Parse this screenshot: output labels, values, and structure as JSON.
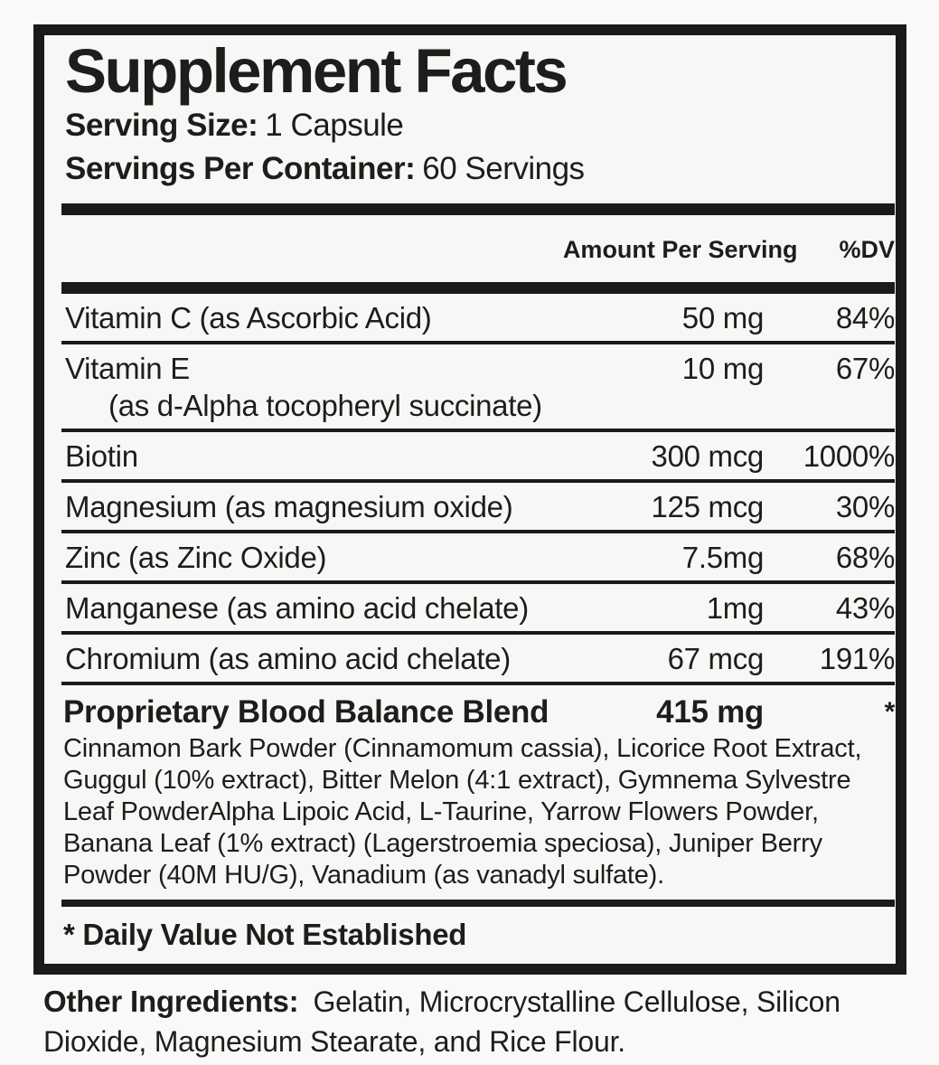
{
  "panel": {
    "title": "Supplement Facts",
    "serving_size_label": "Serving Size:",
    "serving_size_value": "1 Capsule",
    "servings_per_container_label": "Servings Per Container:",
    "servings_per_container_value": "60 Servings",
    "columns": {
      "amount": "Amount Per Serving",
      "dv": "%DV"
    },
    "rows": [
      {
        "name": "Vitamin C (as Ascorbic Acid)",
        "amount": "50 mg",
        "dv": "84%"
      },
      {
        "name": "Vitamin E",
        "name2": "(as d-Alpha tocopheryl succinate)",
        "amount": "10 mg",
        "dv": "67%"
      },
      {
        "name": "Biotin",
        "amount": "300 mcg",
        "dv": "1000%"
      },
      {
        "name": "Magnesium (as magnesium oxide)",
        "amount": "125 mcg",
        "dv": "30%"
      },
      {
        "name": "Zinc (as Zinc Oxide)",
        "amount": "7.5mg",
        "dv": "68%"
      },
      {
        "name": "Manganese (as amino acid chelate)",
        "amount": "1mg",
        "dv": "43%"
      },
      {
        "name": "Chromium (as amino acid chelate)",
        "amount": "67 mcg",
        "dv": "191%"
      }
    ],
    "blend": {
      "name": "Proprietary Blood Balance Blend",
      "amount": "415 mg",
      "dv": "*",
      "description": "Cinnamon Bark Powder (Cinnamomum cassia), Licorice Root Extract, Guggul (10% extract), Bitter Melon (4:1 extract), Gymnema Sylvestre Leaf PowderAlpha Lipoic Acid, L-Taurine, Yarrow Flowers Powder, Banana Leaf (1% extract) (Lagerstroemia speciosa), Juniper Berry Powder (40M HU/G), Vanadium (as vanadyl sulfate)."
    },
    "footnote": "* Daily Value Not Established"
  },
  "footer": {
    "other_ingredients_label": "Other Ingredients:",
    "other_ingredients_value": "Gelatin, Microcrystalline Cellulose, Silicon Dioxide, Magnesium Stearate, and Rice Flour."
  },
  "colors": {
    "text": "#1d1d1b",
    "panel_border": "#1a1a18",
    "background": "#f8f7f5"
  }
}
